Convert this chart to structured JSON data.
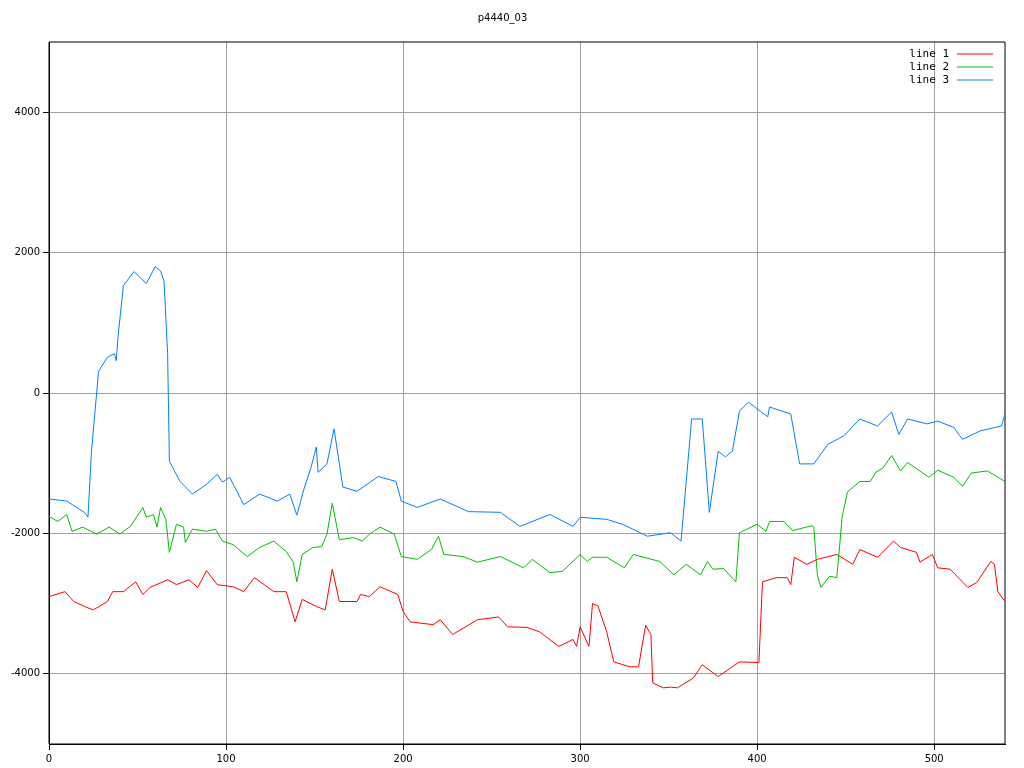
{
  "chart_data": {
    "type": "line",
    "title": "p4440_03",
    "xlim": [
      0,
      540
    ],
    "xticks": [
      0,
      100,
      200,
      300,
      400,
      500
    ],
    "ylim": [
      -5000,
      5000
    ],
    "yticks": [
      -4000,
      -2000,
      0,
      2000,
      4000
    ],
    "grid": true,
    "legend": "top right",
    "marker": "none",
    "line_style": "solid",
    "series": [
      {
        "name": "line 1",
        "color": "#ff0000",
        "x": [
          0,
          9,
          14,
          20,
          25,
          33,
          36,
          42,
          49,
          53,
          57,
          67,
          72,
          79,
          84,
          89,
          95,
          104,
          110,
          116,
          127,
          134,
          139,
          143,
          151,
          156,
          160,
          164,
          174,
          176,
          181,
          187,
          197,
          200,
          204,
          217,
          221,
          228,
          242,
          254,
          259,
          270,
          277,
          288,
          296,
          298,
          300,
          305,
          307,
          310,
          315,
          319,
          328,
          333,
          337,
          340,
          341,
          347,
          351,
          355,
          364,
          369,
          378,
          390,
          401,
          403,
          411,
          417,
          419,
          421,
          428,
          434,
          445,
          454,
          458,
          468,
          477,
          481,
          490,
          492,
          499,
          502,
          509,
          519,
          524,
          532,
          534,
          536,
          540
        ],
        "values": [
          -2900,
          -2830,
          -2970,
          -3040,
          -3090,
          -2970,
          -2830,
          -2830,
          -2690,
          -2870,
          -2770,
          -2660,
          -2730,
          -2660,
          -2770,
          -2530,
          -2730,
          -2760,
          -2830,
          -2630,
          -2830,
          -2830,
          -3260,
          -2940,
          -3040,
          -3090,
          -2510,
          -2970,
          -2970,
          -2870,
          -2900,
          -2760,
          -2870,
          -3110,
          -3260,
          -3300,
          -3230,
          -3440,
          -3230,
          -3190,
          -3330,
          -3340,
          -3400,
          -3610,
          -3510,
          -3610,
          -3330,
          -3610,
          -3000,
          -3030,
          -3400,
          -3830,
          -3900,
          -3900,
          -3310,
          -3440,
          -4130,
          -4200,
          -4190,
          -4200,
          -4060,
          -3870,
          -4040,
          -3830,
          -3840,
          -2690,
          -2630,
          -2630,
          -2730,
          -2340,
          -2440,
          -2370,
          -2300,
          -2440,
          -2230,
          -2340,
          -2110,
          -2200,
          -2270,
          -2410,
          -2300,
          -2490,
          -2510,
          -2770,
          -2700,
          -2400,
          -2440,
          -2830,
          -2970
        ]
      },
      {
        "name": "line 2",
        "color": "#00c000",
        "x": [
          0,
          5,
          10,
          13,
          19,
          27,
          34,
          40,
          46,
          53,
          55,
          59,
          61,
          63,
          66,
          68,
          72,
          76,
          77,
          81,
          89,
          94,
          98,
          104,
          112,
          119,
          127,
          134,
          138,
          140,
          143,
          149,
          154,
          157,
          160,
          164,
          172,
          177,
          181,
          187,
          195,
          199,
          208,
          216,
          220,
          223,
          234,
          242,
          255,
          268,
          273,
          283,
          290,
          300,
          304,
          307,
          315,
          325,
          330,
          345,
          353,
          360,
          368,
          372,
          375,
          381,
          388,
          390,
          400,
          405,
          407,
          415,
          420,
          431,
          432,
          434,
          436,
          441,
          445,
          448,
          451,
          458,
          464,
          467,
          471,
          476,
          481,
          485,
          497,
          502,
          511,
          516,
          521,
          530,
          540
        ],
        "values": [
          -1760,
          -1830,
          -1730,
          -1970,
          -1910,
          -2010,
          -1910,
          -2010,
          -1900,
          -1630,
          -1770,
          -1730,
          -1910,
          -1630,
          -1800,
          -2270,
          -1870,
          -1910,
          -2130,
          -1940,
          -1970,
          -1940,
          -2110,
          -2160,
          -2330,
          -2200,
          -2110,
          -2260,
          -2410,
          -2690,
          -2300,
          -2200,
          -2190,
          -2010,
          -1570,
          -2090,
          -2060,
          -2110,
          -2010,
          -1910,
          -2010,
          -2330,
          -2370,
          -2230,
          -2040,
          -2300,
          -2330,
          -2410,
          -2330,
          -2490,
          -2370,
          -2560,
          -2540,
          -2300,
          -2400,
          -2340,
          -2340,
          -2490,
          -2300,
          -2400,
          -2590,
          -2440,
          -2590,
          -2400,
          -2510,
          -2500,
          -2690,
          -1990,
          -1870,
          -1970,
          -1830,
          -1830,
          -1960,
          -1890,
          -1910,
          -2590,
          -2770,
          -2610,
          -2630,
          -1770,
          -1410,
          -1260,
          -1260,
          -1130,
          -1070,
          -890,
          -1110,
          -990,
          -1200,
          -1100,
          -1200,
          -1330,
          -1140,
          -1110,
          -1260
        ]
      },
      {
        "name": "line 3",
        "color": "#0080ff",
        "x": [
          0,
          10,
          20,
          22,
          24,
          26,
          28,
          33,
          37,
          38,
          39,
          42,
          48,
          55,
          60,
          63,
          65,
          67,
          68,
          74,
          81,
          89,
          95,
          98,
          102,
          110,
          119,
          129,
          136,
          140,
          144,
          148,
          151,
          152,
          157,
          161,
          166,
          174,
          186,
          196,
          199,
          208,
          221,
          237,
          255,
          266,
          283,
          296,
          300,
          315,
          324,
          338,
          351,
          357,
          363,
          369,
          373,
          378,
          382,
          386,
          390,
          395,
          406,
          407,
          419,
          424,
          432,
          440,
          449,
          458,
          468,
          476,
          480,
          485,
          496,
          502,
          511,
          516,
          526,
          538,
          540
        ],
        "values": [
          -1510,
          -1540,
          -1700,
          -1770,
          -830,
          -260,
          310,
          510,
          560,
          460,
          800,
          1530,
          1730,
          1560,
          1800,
          1740,
          1590,
          560,
          -970,
          -1260,
          -1440,
          -1300,
          -1160,
          -1270,
          -1200,
          -1590,
          -1440,
          -1540,
          -1440,
          -1740,
          -1370,
          -1060,
          -770,
          -1130,
          -1010,
          -510,
          -1340,
          -1400,
          -1190,
          -1260,
          -1540,
          -1630,
          -1510,
          -1690,
          -1700,
          -1900,
          -1730,
          -1900,
          -1770,
          -1800,
          -1870,
          -2040,
          -1990,
          -2110,
          -370,
          -370,
          -1700,
          -830,
          -910,
          -830,
          -260,
          -130,
          -340,
          -200,
          -300,
          -1010,
          -1010,
          -730,
          -610,
          -370,
          -470,
          -270,
          -590,
          -370,
          -440,
          -400,
          -490,
          -660,
          -540,
          -470,
          -300
        ]
      }
    ]
  }
}
